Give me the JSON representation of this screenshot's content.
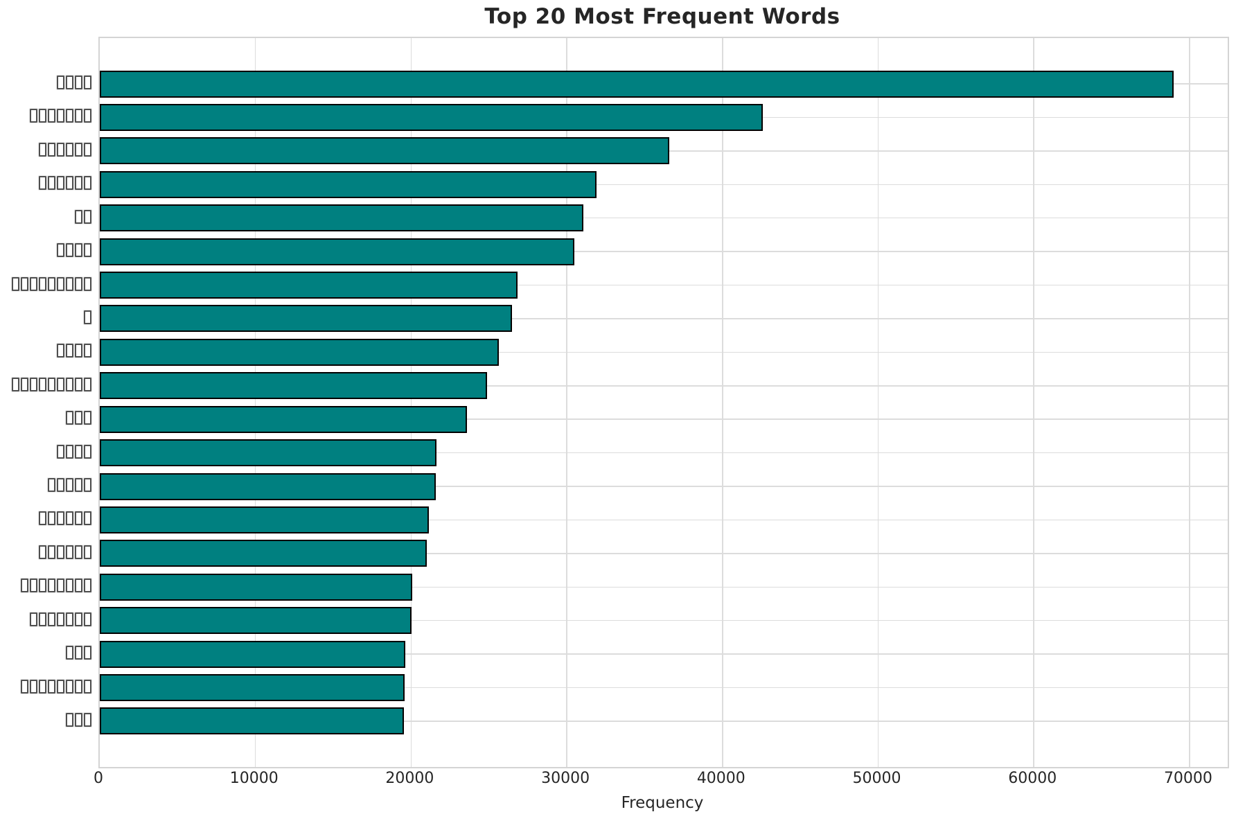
{
  "figure": {
    "background": "#ffffff"
  },
  "chart_data": {
    "type": "bar",
    "orientation": "horizontal",
    "title": "Top 20 Most Frequent Words",
    "xlabel": "Frequency",
    "ylabel": "",
    "x_ticks": [
      0,
      10000,
      20000,
      30000,
      40000,
      50000,
      60000,
      70000
    ],
    "xlim": [
      0,
      72450
    ],
    "grid": true,
    "legend_position": "none",
    "bar_color": "#008080",
    "bar_edge_color": "#000000",
    "grid_color": "#dcdcdc",
    "categories": [
      "□□□□",
      "□□□□□□□",
      "□□□□□□",
      "□□□□□□",
      "□□",
      "□□□□",
      "□□□□□□□□□",
      "□",
      "□□□□",
      "□□□□□□□□□",
      "□□□",
      "□□□□",
      "□□□□□",
      "□□□□□□",
      "□□□□□□",
      "□□□□□□□□",
      "□□□□□□□",
      "□□□",
      "□□□□□□□□",
      "□□□"
    ],
    "category_glyph_counts": [
      4,
      7,
      6,
      6,
      2,
      4,
      9,
      1,
      4,
      9,
      3,
      4,
      5,
      6,
      6,
      8,
      7,
      3,
      8,
      3
    ],
    "values": [
      68990,
      42570,
      36590,
      31900,
      31050,
      30500,
      26840,
      26500,
      25620,
      24880,
      23600,
      21640,
      21600,
      21150,
      21000,
      20060,
      20040,
      19640,
      19560,
      19540
    ],
    "label_rendering_note": "y-axis category labels appear as missing-glyph (tofu) box characters in the source image"
  }
}
